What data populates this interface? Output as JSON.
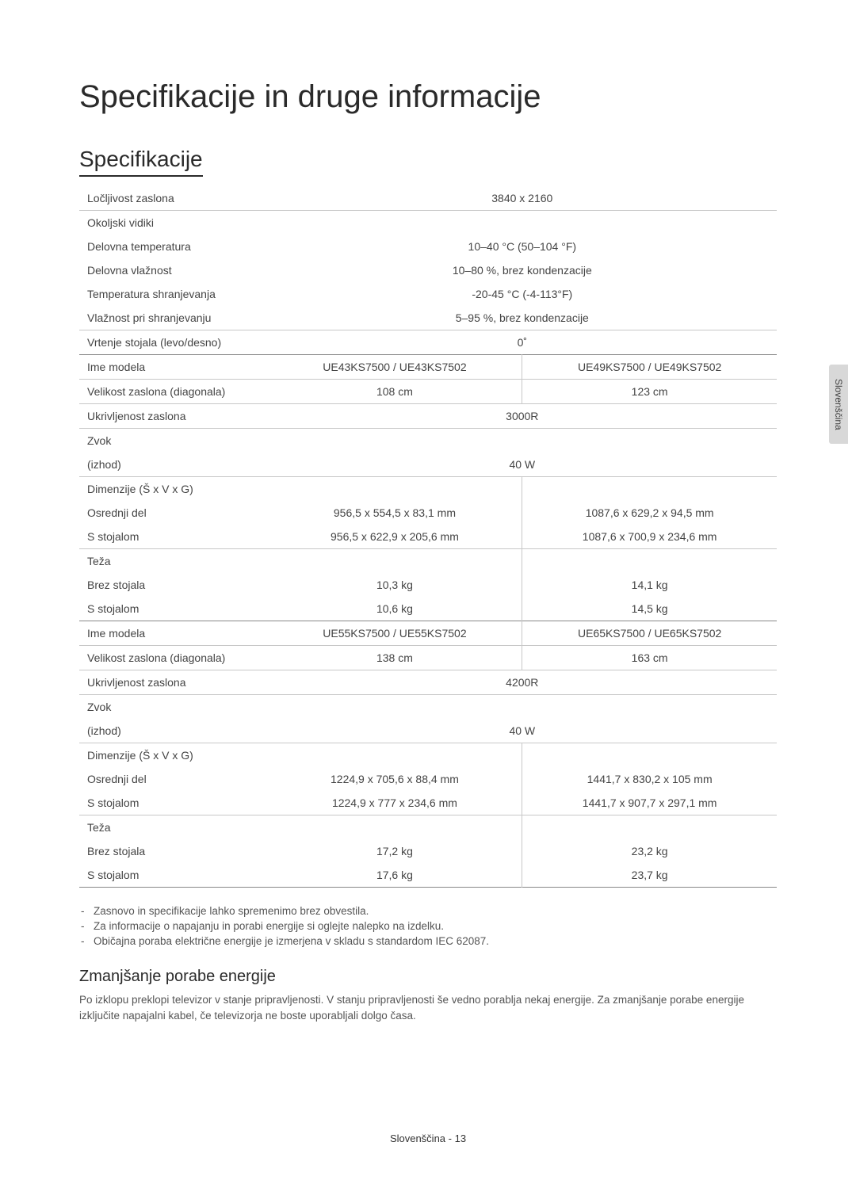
{
  "page": {
    "title": "Specifikacije in druge informacije",
    "section_title": "Specifikacije",
    "language_tab": "Slovenščina",
    "footer": "Slovenščina - 13"
  },
  "spec_table": {
    "colors": {
      "text": "#444444",
      "border": "#c8c8c8",
      "border_heavy": "#888888",
      "background": "#ffffff"
    },
    "font_size": 14,
    "rows": [
      {
        "label": "Ločljivost zaslona",
        "span": "3840 x 2160",
        "border": "normal"
      },
      {
        "label": "Okoljski vidiki",
        "span": "",
        "border": "none"
      },
      {
        "label": "Delovna temperatura",
        "span": "10–40 °C (50–104 °F)",
        "border": "none"
      },
      {
        "label": "Delovna vlažnost",
        "span": "10–80 %, brez kondenzacije",
        "border": "none"
      },
      {
        "label": "Temperatura shranjevanja",
        "span": "-20-45 °C (-4-113°F)",
        "border": "none"
      },
      {
        "label": "Vlažnost pri shranjevanju",
        "span": "5–95 %, brez kondenzacije",
        "border": "normal"
      },
      {
        "label": "Vrtenje stojala (levo/desno)",
        "span": "0˚",
        "border": "heavy"
      },
      {
        "label": "Ime modela",
        "col1": "UE43KS7500 / UE43KS7502",
        "col2": "UE49KS7500 / UE49KS7502",
        "border": "normal"
      },
      {
        "label": "Velikost zaslona (diagonala)",
        "col1": "108 cm",
        "col2": "123 cm",
        "border": "normal"
      },
      {
        "label": "Ukrivljenost zaslona",
        "span": "3000R",
        "border": "normal"
      },
      {
        "label": "Zvok",
        "span": "",
        "border": "none"
      },
      {
        "label": "(izhod)",
        "span": "40 W",
        "border": "normal"
      },
      {
        "label": "Dimenzije (Š x V x G)",
        "col1": "",
        "col2": "",
        "border": "none"
      },
      {
        "label": "Osrednji del",
        "col1": "956,5 x 554,5 x 83,1 mm",
        "col2": "1087,6 x 629,2 x 94,5 mm",
        "border": "none"
      },
      {
        "label": "S stojalom",
        "col1": "956,5 x 622,9 x 205,6 mm",
        "col2": "1087,6 x 700,9 x 234,6 mm",
        "border": "normal"
      },
      {
        "label": "Teža",
        "col1": "",
        "col2": "",
        "border": "none"
      },
      {
        "label": "Brez stojala",
        "col1": "10,3 kg",
        "col2": "14,1 kg",
        "border": "none"
      },
      {
        "label": "S stojalom",
        "col1": "10,6 kg",
        "col2": "14,5 kg",
        "border": "heavy"
      },
      {
        "label": "Ime modela",
        "col1": "UE55KS7500 / UE55KS7502",
        "col2": "UE65KS7500 / UE65KS7502",
        "border": "normal"
      },
      {
        "label": "Velikost zaslona (diagonala)",
        "col1": "138 cm",
        "col2": "163 cm",
        "border": "normal"
      },
      {
        "label": "Ukrivljenost zaslona",
        "span": "4200R",
        "border": "normal"
      },
      {
        "label": "Zvok",
        "span": "",
        "border": "none"
      },
      {
        "label": "(izhod)",
        "span": "40 W",
        "border": "normal"
      },
      {
        "label": "Dimenzije (Š x V x G)",
        "col1": "",
        "col2": "",
        "border": "none"
      },
      {
        "label": "Osrednji del",
        "col1": "1224,9 x 705,6 x 88,4 mm",
        "col2": "1441,7 x 830,2 x 105 mm",
        "border": "none"
      },
      {
        "label": "S stojalom",
        "col1": "1224,9 x 777 x 234,6 mm",
        "col2": "1441,7 x 907,7 x 297,1 mm",
        "border": "normal"
      },
      {
        "label": "Teža",
        "col1": "",
        "col2": "",
        "border": "none"
      },
      {
        "label": "Brez stojala",
        "col1": "17,2 kg",
        "col2": "23,2 kg",
        "border": "none"
      },
      {
        "label": "S stojalom",
        "col1": "17,6 kg",
        "col2": "23,7 kg",
        "border": "heavy"
      }
    ]
  },
  "notes": [
    "Zasnovo in specifikacije lahko spremenimo brez obvestila.",
    "Za informacije o napajanju in porabi energije si oglejte nalepko na izdelku.",
    "Običajna poraba električne energije je izmerjena v skladu s standardom IEC 62087."
  ],
  "subsection": {
    "title": "Zmanjšanje porabe energije",
    "body": "Po izklopu preklopi televizor v stanje pripravljenosti. V stanju pripravljenosti še vedno porablja nekaj energije. Za zmanjšanje porabe energije izključite napajalni kabel, če televizorja ne boste uporabljali dolgo časa."
  }
}
